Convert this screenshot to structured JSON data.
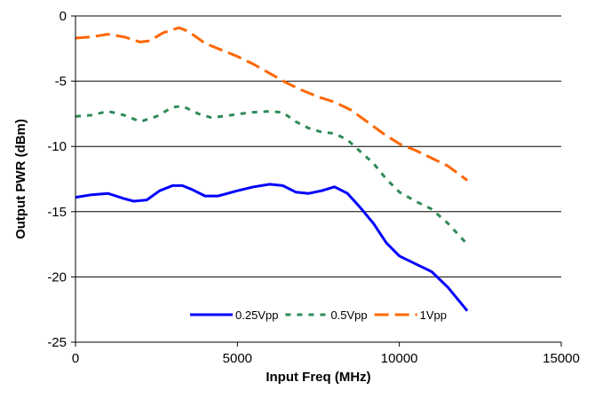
{
  "chart_data": {
    "type": "line",
    "xlabel": "Input Freq (MHz)",
    "ylabel": "Output PWR (dBm)",
    "xlim": [
      0,
      15000
    ],
    "ylim": [
      -25,
      0
    ],
    "x_ticks": [
      0,
      5000,
      10000,
      15000
    ],
    "y_ticks": [
      0,
      -5,
      -10,
      -15,
      -20,
      -25
    ],
    "grid": "horizontal",
    "legend_position": "bottom-center",
    "series": [
      {
        "name": "0.25Vpp",
        "color": "#0000ff",
        "dash": "solid",
        "x": [
          0,
          500,
          1000,
          1500,
          1800,
          2200,
          2600,
          3000,
          3300,
          3600,
          4000,
          4400,
          5000,
          5500,
          6000,
          6400,
          6800,
          7200,
          7600,
          8000,
          8400,
          8800,
          9200,
          9600,
          10000,
          10500,
          11000,
          11500,
          12100
        ],
        "y": [
          -13.9,
          -13.7,
          -13.6,
          -14.0,
          -14.2,
          -14.1,
          -13.4,
          -13.0,
          -13.0,
          -13.3,
          -13.8,
          -13.8,
          -13.4,
          -13.1,
          -12.9,
          -13.0,
          -13.5,
          -13.6,
          -13.4,
          -13.1,
          -13.6,
          -14.7,
          -15.9,
          -17.4,
          -18.4,
          -19.0,
          -19.6,
          -20.8,
          -22.6
        ]
      },
      {
        "name": "0.5Vpp",
        "color": "#2e8b57",
        "dash": "dash",
        "x": [
          0,
          500,
          1000,
          1500,
          2000,
          2500,
          3000,
          3300,
          3800,
          4200,
          4800,
          5400,
          6000,
          6400,
          6800,
          7200,
          7600,
          8000,
          8400,
          8800,
          9200,
          9600,
          10000,
          10500,
          11000,
          11500,
          12100
        ],
        "y": [
          -7.7,
          -7.6,
          -7.3,
          -7.6,
          -8.1,
          -7.7,
          -7.0,
          -6.9,
          -7.5,
          -7.8,
          -7.6,
          -7.4,
          -7.3,
          -7.4,
          -8.1,
          -8.6,
          -8.9,
          -9.0,
          -9.5,
          -10.4,
          -11.3,
          -12.5,
          -13.5,
          -14.2,
          -14.8,
          -15.9,
          -17.5
        ]
      },
      {
        "name": "1Vpp",
        "color": "#ff6600",
        "dash": "long-dash",
        "x": [
          0,
          500,
          1000,
          1500,
          2000,
          2300,
          2700,
          3200,
          3500,
          4000,
          4500,
          5000,
          5500,
          6000,
          6500,
          7000,
          7500,
          8000,
          8500,
          9000,
          9500,
          10000,
          10500,
          11000,
          11500,
          12100
        ],
        "y": [
          -1.7,
          -1.6,
          -1.4,
          -1.6,
          -2.0,
          -1.9,
          -1.3,
          -0.9,
          -1.2,
          -2.1,
          -2.6,
          -3.1,
          -3.7,
          -4.4,
          -5.1,
          -5.7,
          -6.2,
          -6.6,
          -7.2,
          -8.1,
          -9.0,
          -9.8,
          -10.3,
          -10.9,
          -11.5,
          -12.6
        ]
      }
    ]
  }
}
